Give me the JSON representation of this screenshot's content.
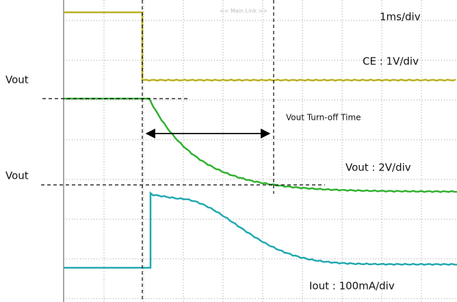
{
  "header": {
    "link": "<< Main Link >>",
    "time_scale": "1ms/div"
  },
  "labels": {
    "ce_scale": "CE : 1V/div",
    "vout_top": "Vout",
    "vout_bottom": "Vout",
    "turn_off": "Vout Turn-off Time",
    "vout_scale": "Vout : 2V/div",
    "iout_scale": "Iout : 100mA/div"
  }
}
